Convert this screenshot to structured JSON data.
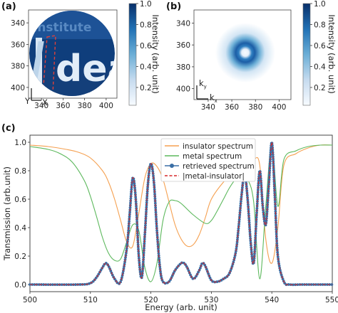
{
  "figure": {
    "panel_labels": [
      "(a)",
      "(b)",
      "(c)"
    ]
  },
  "panel_a": {
    "x_ticks": [
      "340",
      "360",
      "380",
      "400"
    ],
    "y_ticks": [
      "340",
      "360",
      "380",
      "400"
    ],
    "axis_x_letter": "X",
    "axis_y_letter": "Y",
    "logo_text_small": "Institute",
    "logo_text_large": "dea",
    "colorbar": {
      "label": "Intensity (arb. unit)",
      "ticks": [
        "1.0",
        "0.8",
        "0.6",
        "0.4",
        "0.2"
      ]
    }
  },
  "panel_b": {
    "x_ticks": [
      "340",
      "360",
      "380",
      "400"
    ],
    "y_ticks": [
      "340",
      "360",
      "380",
      "400"
    ],
    "axis_kx_base": "k",
    "axis_kx_sub": "x",
    "axis_ky_base": "k",
    "axis_ky_sub": "y",
    "colorbar": {
      "label": "Intensity (arb. unit)",
      "ticks": [
        "1.0",
        "0.8",
        "0.6",
        "0.4",
        "0.2"
      ]
    }
  },
  "colors": {
    "insulator": "#f5a050",
    "metal": "#5cb85c",
    "retrieved": "#3a6ea5",
    "difference": "#d62728",
    "colormap_high": "#08306b",
    "colormap_low": "#f7fbff"
  },
  "chart_data": {
    "type": "line",
    "xlabel": "Energy (arb. unit)",
    "ylabel": "Transmission (arb.unit)",
    "xlim": [
      500,
      550
    ],
    "ylim": [
      -0.05,
      1.05
    ],
    "x_ticks": [
      500,
      510,
      520,
      530,
      540,
      550
    ],
    "y_ticks": [
      0.0,
      0.2,
      0.4,
      0.6,
      0.8,
      1.0
    ],
    "legend_position": "top-center",
    "legend_labels": [
      "insulator spectrum",
      "metal spectrum",
      "retrieved spectrum",
      "|metal-insulator|"
    ],
    "series": [
      {
        "name": "insulator spectrum",
        "x": [
          500,
          503,
          506,
          508,
          510,
          512,
          513,
          514,
          515,
          516,
          517,
          518,
          519,
          520,
          521,
          522,
          523,
          524,
          525,
          526,
          527,
          528,
          529,
          530,
          532,
          534,
          535,
          536,
          537,
          538,
          539,
          540,
          541,
          542,
          544,
          546,
          548,
          550
        ],
        "y": [
          0.98,
          0.97,
          0.95,
          0.93,
          0.89,
          0.8,
          0.72,
          0.6,
          0.45,
          0.3,
          0.27,
          0.5,
          0.75,
          0.85,
          0.83,
          0.74,
          0.58,
          0.42,
          0.32,
          0.27,
          0.28,
          0.35,
          0.47,
          0.6,
          0.72,
          0.8,
          0.84,
          0.87,
          0.88,
          0.84,
          0.32,
          0.15,
          0.4,
          0.84,
          0.92,
          0.96,
          0.98,
          0.98
        ]
      },
      {
        "name": "metal spectrum",
        "x": [
          500,
          503,
          505,
          507,
          509,
          510,
          511,
          512,
          513,
          514,
          515,
          516,
          517,
          518,
          519,
          520,
          521,
          522,
          523,
          524,
          525,
          527,
          529,
          530,
          531,
          532,
          533,
          534,
          535,
          536,
          537,
          538,
          539,
          540,
          541,
          542,
          544,
          546,
          548,
          550
        ],
        "y": [
          0.97,
          0.95,
          0.92,
          0.86,
          0.73,
          0.62,
          0.48,
          0.33,
          0.22,
          0.17,
          0.18,
          0.3,
          0.42,
          0.38,
          0.12,
          0.02,
          0.15,
          0.45,
          0.58,
          0.59,
          0.57,
          0.49,
          0.43,
          0.45,
          0.52,
          0.6,
          0.68,
          0.74,
          0.77,
          0.74,
          0.58,
          0.04,
          0.55,
          0.99,
          0.55,
          0.88,
          0.94,
          0.97,
          0.98,
          0.98
        ]
      },
      {
        "name": "retrieved spectrum",
        "x": [
          500,
          508,
          510,
          511,
          512,
          512.5,
          513,
          514,
          515,
          516,
          516.5,
          517,
          517.5,
          518,
          518.5,
          519,
          519.5,
          520,
          520.5,
          521,
          521.5,
          522,
          523,
          524,
          525,
          525.5,
          526,
          527,
          528,
          528.5,
          529,
          530,
          531,
          532,
          533,
          534,
          534.5,
          535,
          535.5,
          536,
          536.5,
          537,
          537.5,
          538,
          538.5,
          539,
          539.5,
          540,
          540.5,
          541,
          542,
          543,
          545,
          550
        ],
        "y": [
          0.0,
          0.0,
          0.01,
          0.05,
          0.12,
          0.15,
          0.13,
          0.04,
          0.02,
          0.25,
          0.5,
          0.75,
          0.6,
          0.2,
          0.05,
          0.35,
          0.7,
          0.85,
          0.72,
          0.38,
          0.12,
          0.02,
          0.02,
          0.1,
          0.15,
          0.15,
          0.12,
          0.04,
          0.1,
          0.15,
          0.13,
          0.03,
          0.02,
          0.04,
          0.08,
          0.22,
          0.4,
          0.63,
          0.78,
          0.6,
          0.3,
          0.15,
          0.5,
          0.8,
          0.55,
          0.42,
          0.7,
          1.0,
          0.62,
          0.2,
          0.02,
          0.0,
          0.0,
          0.0
        ]
      },
      {
        "name": "|metal-insulator|",
        "x": [
          500,
          508,
          510,
          511,
          512,
          512.5,
          513,
          514,
          515,
          516,
          516.5,
          517,
          517.5,
          518,
          518.5,
          519,
          519.5,
          520,
          520.5,
          521,
          521.5,
          522,
          523,
          524,
          525,
          525.5,
          526,
          527,
          528,
          528.5,
          529,
          530,
          531,
          532,
          533,
          534,
          534.5,
          535,
          535.5,
          536,
          536.5,
          537,
          537.5,
          538,
          538.5,
          539,
          539.5,
          540,
          540.5,
          541,
          542,
          543,
          545,
          550
        ],
        "y": [
          0.0,
          0.0,
          0.01,
          0.05,
          0.12,
          0.15,
          0.13,
          0.04,
          0.02,
          0.25,
          0.5,
          0.75,
          0.6,
          0.2,
          0.05,
          0.35,
          0.7,
          0.85,
          0.72,
          0.38,
          0.12,
          0.02,
          0.02,
          0.1,
          0.15,
          0.15,
          0.12,
          0.04,
          0.1,
          0.15,
          0.13,
          0.03,
          0.02,
          0.04,
          0.08,
          0.22,
          0.4,
          0.63,
          0.78,
          0.6,
          0.3,
          0.15,
          0.5,
          0.8,
          0.55,
          0.42,
          0.7,
          1.0,
          0.62,
          0.2,
          0.02,
          0.0,
          0.0,
          0.0
        ]
      }
    ]
  }
}
